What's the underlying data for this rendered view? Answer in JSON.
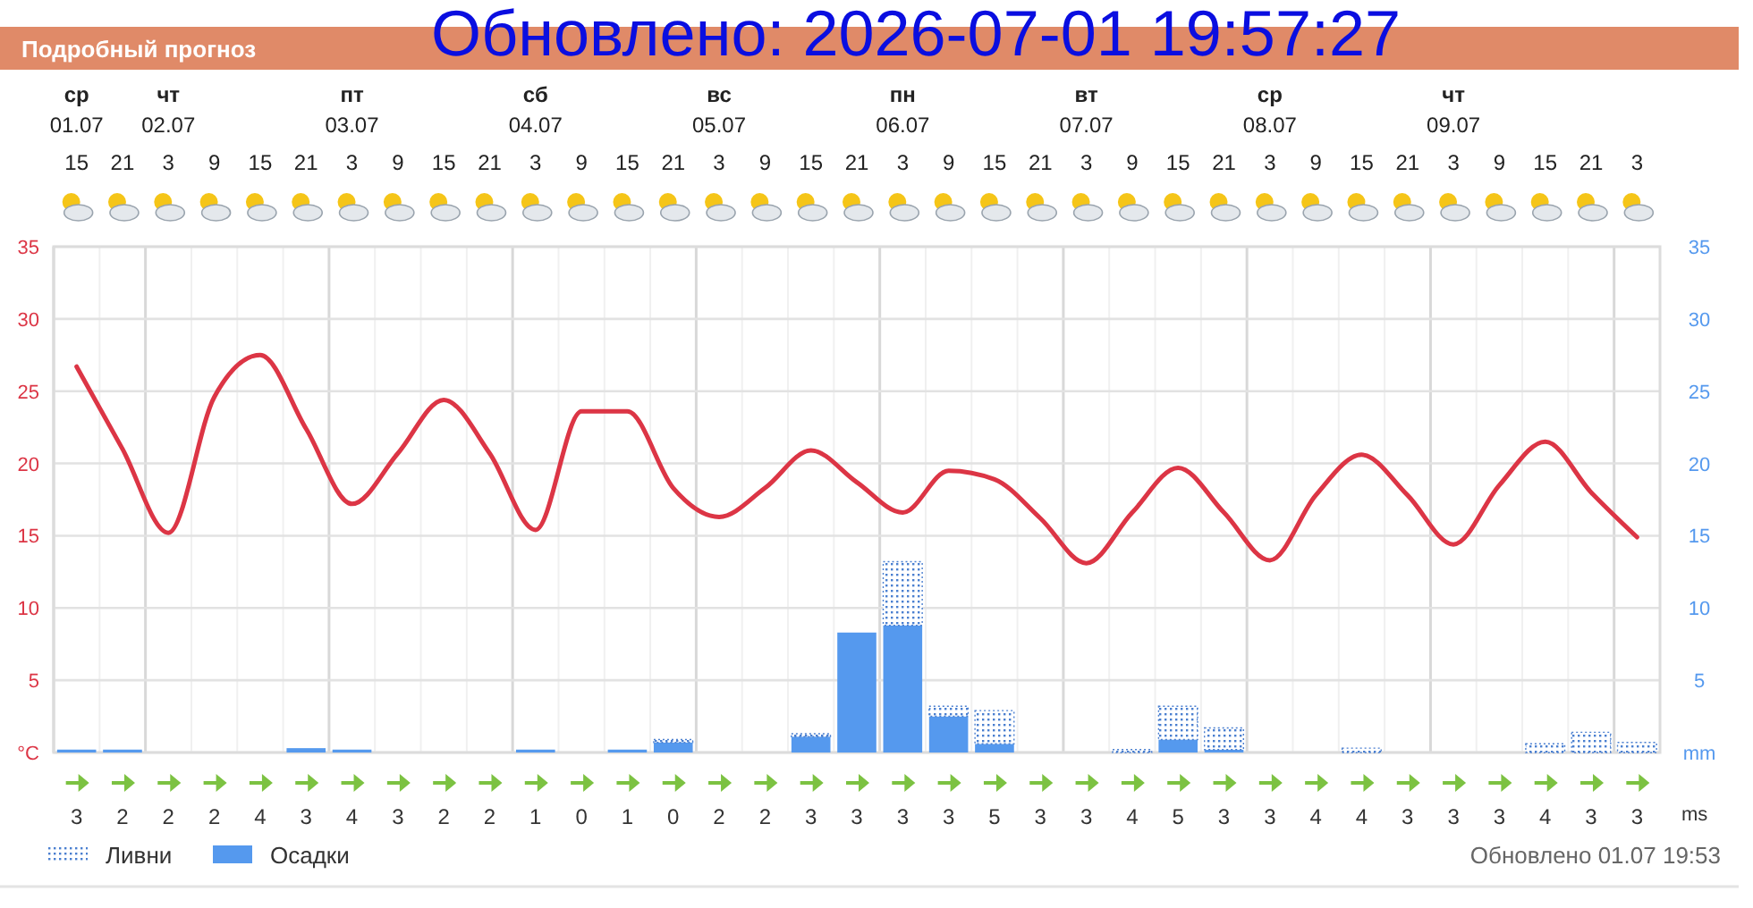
{
  "chart_data": [
    {
      "type": "bar",
      "title": "Подробный прогноз",
      "categories": [
        "15",
        "21",
        "3",
        "9",
        "15",
        "21",
        "3",
        "9",
        "15",
        "21",
        "3",
        "9",
        "15",
        "21",
        "3",
        "9",
        "15",
        "21",
        "3",
        "9",
        "15",
        "21",
        "3",
        "9",
        "15",
        "21",
        "3",
        "9",
        "15",
        "21",
        "3",
        "9",
        "15",
        "21",
        "3"
      ],
      "series": [
        {
          "type": "line",
          "color": "#dc3545",
          "values": [
            26.7,
            21,
            15.2,
            24.6,
            27.5,
            22.4,
            17.2,
            20.7,
            24.4,
            20.7,
            15.4,
            23.6,
            23.6,
            18.3,
            16.3,
            18.3,
            20.9,
            18.7,
            16.6,
            19.5,
            18.9,
            16.2,
            13.1,
            16.6,
            19.7,
            16.6,
            13.3,
            17.8,
            20.6,
            17.8,
            14.4,
            18.5,
            21.5,
            18,
            14.9
          ]
        },
        {
          "axis": "y2",
          "name": "Осадки",
          "color": "#5599ee",
          "values": [
            0.2,
            0.2,
            0,
            0,
            0,
            0.3,
            0.2,
            0,
            0,
            0,
            0.2,
            0,
            0.2,
            0.7,
            0,
            0,
            1.1,
            8.3,
            8.8,
            2.5,
            0.6,
            0,
            0,
            0,
            0.9,
            0.2,
            0,
            0,
            0,
            0,
            0,
            0,
            0,
            0,
            0
          ]
        },
        {
          "axis": "y2",
          "name": "Ливни",
          "color": "#4a7fd0",
          "line_style": "dotted",
          "values": [
            0,
            0,
            0,
            0,
            0,
            0,
            0,
            0,
            0,
            0,
            0,
            0,
            0,
            0.2,
            0,
            0,
            0.2,
            0,
            4.4,
            0.7,
            2.3,
            0,
            0,
            0.2,
            2.3,
            1.5,
            0,
            0,
            0.3,
            0,
            0,
            0,
            0.6,
            1.4,
            0.7
          ]
        }
      ],
      "stacked": true,
      "ylim": [
        0,
        35
      ],
      "yticks": [
        {
          "value": 0,
          "label": "°C"
        },
        5,
        10,
        15,
        20,
        25,
        30,
        35
      ],
      "y2lim": [
        0,
        35
      ],
      "y2ticks": [
        {
          "value": 0,
          "label": "mm"
        },
        5,
        10,
        15,
        20,
        25,
        30,
        35
      ],
      "grid": true,
      "legend": "bottom left",
      "annotations": [
        "Обновлено: 2026-07-01 19:57:27",
        "Обновлено 01.07 19:53",
        "ср 01.07",
        "чт 02.07",
        "пт 03.07",
        "сб 04.07",
        "вс 05.07",
        "пн 06.07",
        "вт 07.07",
        "ср 08.07",
        "чт 09.07"
      ]
    },
    {
      "type": "other",
      "values": [
        3,
        2,
        2,
        2,
        4,
        3,
        4,
        3,
        2,
        2,
        1,
        0,
        1,
        0,
        2,
        2,
        3,
        3,
        3,
        3,
        5,
        3,
        3,
        4,
        5,
        3,
        3,
        4,
        4,
        3,
        3,
        3,
        4,
        3,
        3
      ],
      "data_labels": true,
      "annotations": [
        "ms"
      ]
    }
  ]
}
